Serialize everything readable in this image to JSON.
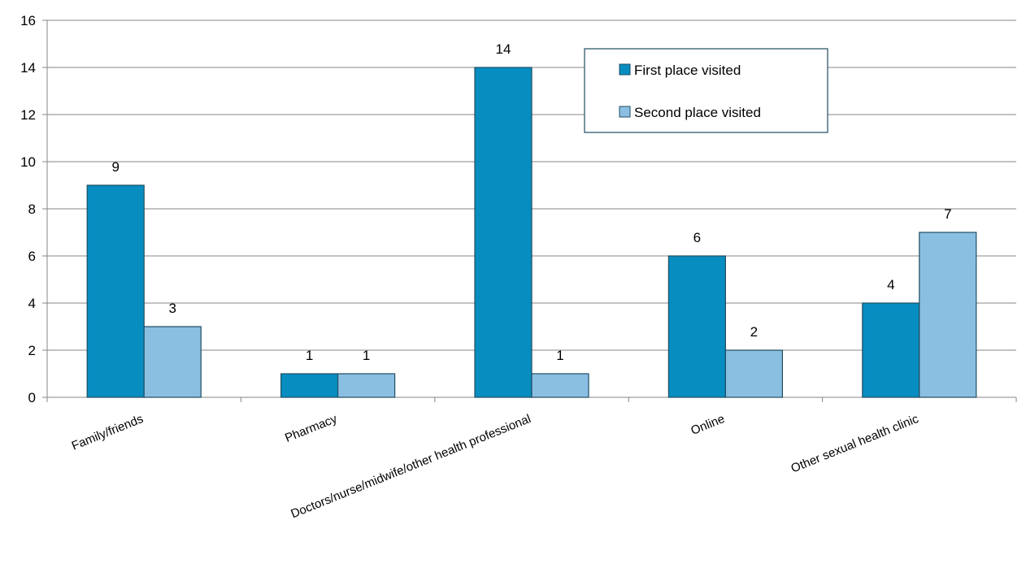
{
  "chart_data": {
    "type": "bar",
    "title": "",
    "xlabel": "",
    "ylabel": "",
    "categories": [
      "Family/friends",
      "Pharmacy",
      "Doctors/nurse/midwife/other health professional",
      "Online",
      "Other sexual health clinic"
    ],
    "series": [
      {
        "name": "First place visited",
        "values": [
          9,
          1,
          14,
          6,
          4
        ],
        "color": "#078DC0"
      },
      {
        "name": "Second place visited",
        "values": [
          3,
          1,
          1,
          2,
          7
        ],
        "color": "#8BBFE2"
      }
    ],
    "ylim": [
      0,
      16
    ],
    "yticks": [
      0,
      2,
      4,
      6,
      8,
      10,
      12,
      14,
      16
    ],
    "grid": true,
    "legend_position": "top-right",
    "data_labels": true,
    "bar_outline_color": "#1F4E62",
    "gridline_color": "#878787"
  }
}
